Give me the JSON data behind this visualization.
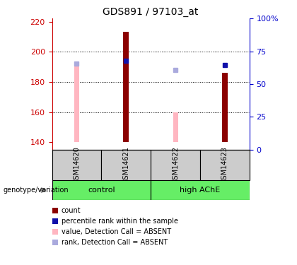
{
  "title": "GDS891 / 97103_at",
  "samples": [
    "GSM14620",
    "GSM14621",
    "GSM14622",
    "GSM14623"
  ],
  "ylim_left": [
    135,
    222
  ],
  "ylim_right": [
    0,
    100
  ],
  "yticks_left": [
    140,
    160,
    180,
    200,
    220
  ],
  "yticks_right": [
    0,
    25,
    50,
    75,
    100
  ],
  "ytick_labels_right": [
    "0",
    "25",
    "50",
    "75",
    "100%"
  ],
  "red_bars": [
    null,
    213,
    null,
    186
  ],
  "pink_bars": [
    192,
    null,
    160,
    null
  ],
  "blue_squares": [
    null,
    194,
    null,
    191
  ],
  "lavender_squares": [
    192,
    null,
    188,
    null
  ],
  "bar_bottom": 140,
  "red_bar_color": "#8B0000",
  "pink_bar_color": "#FFB6C1",
  "blue_sq_color": "#1111AA",
  "lavender_sq_color": "#AAAADD",
  "left_ax_color": "#CC0000",
  "right_ax_color": "#0000CC",
  "grid_color": "#000000",
  "sample_box_color": "#CCCCCC",
  "group_box_color": "#66EE66",
  "title_fontsize": 10,
  "tick_fontsize": 8,
  "label_fontsize": 7,
  "legend_items": [
    {
      "color": "#8B0000",
      "label": "count"
    },
    {
      "color": "#1111AA",
      "label": "percentile rank within the sample"
    },
    {
      "color": "#FFB6C1",
      "label": "value, Detection Call = ABSENT"
    },
    {
      "color": "#AAAADD",
      "label": "rank, Detection Call = ABSENT"
    }
  ]
}
